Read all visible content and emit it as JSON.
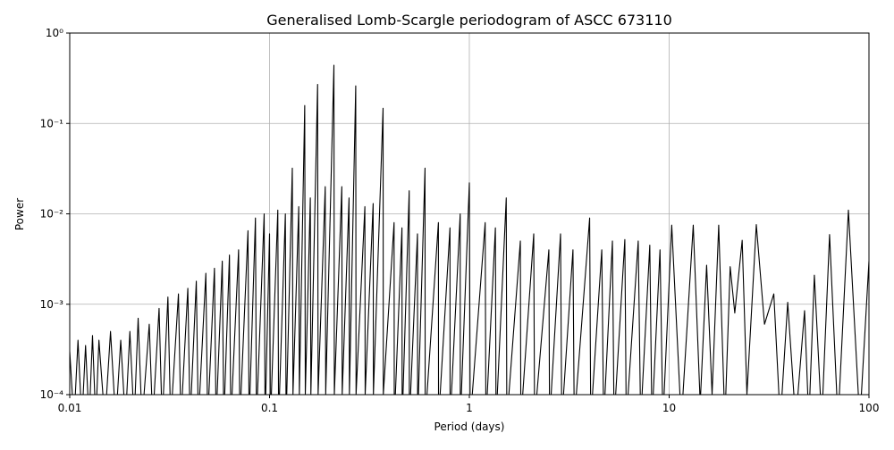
{
  "chart_data": {
    "type": "line",
    "title": "Generalised Lomb-Scargle periodogram of ASCC 673110",
    "x_label": "Period (days)",
    "y_label": "Power",
    "log_x": true,
    "log_y": true,
    "grid": true,
    "xlim": [
      0.01,
      100
    ],
    "ylim": [
      0.0001,
      1
    ],
    "xticks": [
      0.01,
      0.1,
      1,
      10,
      100
    ],
    "yticks": [
      {
        "value": 0.0001,
        "label": "10⁻⁴"
      },
      {
        "value": 0.001,
        "label": "10⁻³"
      },
      {
        "value": 0.01,
        "label": "10⁻²"
      },
      {
        "value": 0.1,
        "label": "10⁻¹"
      },
      {
        "value": 1,
        "label": "10⁰"
      }
    ],
    "x": [
      0.01,
      0.0105,
      0.011,
      0.0115,
      0.012,
      0.0125,
      0.013,
      0.0135,
      0.014,
      0.015,
      0.016,
      0.017,
      0.018,
      0.019,
      0.02,
      0.021,
      0.022,
      0.023,
      0.025,
      0.026,
      0.028,
      0.029,
      0.031,
      0.032,
      0.035,
      0.036,
      0.039,
      0.04,
      0.043,
      0.044,
      0.048,
      0.049,
      0.053,
      0.054,
      0.058,
      0.059,
      0.063,
      0.064,
      0.07,
      0.071,
      0.078,
      0.079,
      0.085,
      0.086,
      0.094,
      0.095,
      0.1,
      0.101,
      0.11,
      0.111,
      0.12,
      0.121,
      0.13,
      0.131,
      0.14,
      0.141,
      0.15,
      0.151,
      0.16,
      0.161,
      0.174,
      0.175,
      0.19,
      0.191,
      0.21,
      0.211,
      0.23,
      0.231,
      0.25,
      0.251,
      0.27,
      0.271,
      0.3,
      0.301,
      0.33,
      0.331,
      0.37,
      0.371,
      0.42,
      0.421,
      0.46,
      0.461,
      0.5,
      0.501,
      0.55,
      0.551,
      0.6,
      0.601,
      0.7,
      0.701,
      0.8,
      0.801,
      0.9,
      0.901,
      1.0,
      1.01,
      1.2,
      1.21,
      1.35,
      1.36,
      1.53,
      1.54,
      1.8,
      1.81,
      2.1,
      2.12,
      2.5,
      2.52,
      2.86,
      2.9,
      3.3,
      3.35,
      4.0,
      4.05,
      4.6,
      4.7,
      5.2,
      5.3,
      6.0,
      6.1,
      7.0,
      7.2,
      8.0,
      8.2,
      9.0,
      9.3,
      10.3,
      11.5,
      13.2,
      14.3,
      15.4,
      16.4,
      17.7,
      19,
      20.2,
      21.3,
      23.2,
      24.5,
      27.3,
      30,
      33.4,
      36,
      39.2,
      43,
      47.6,
      50,
      53.3,
      58,
      63.5,
      70,
      78.9,
      90,
      100
    ],
    "series": [
      {
        "name": "Power",
        "color": "#000000",
        "values": [
          0.0003,
          5e-05,
          0.0004,
          5e-05,
          0.00035,
          5e-05,
          0.00045,
          5e-05,
          0.0004,
          5e-05,
          0.0005,
          5e-05,
          0.0004,
          5e-05,
          0.0005,
          5e-05,
          0.0007,
          5e-05,
          0.0006,
          5e-05,
          0.0009,
          5e-05,
          0.0012,
          5e-05,
          0.0013,
          5e-05,
          0.0015,
          5e-05,
          0.0018,
          5e-05,
          0.0022,
          5e-05,
          0.0025,
          5e-05,
          0.003,
          5e-05,
          0.0035,
          5e-05,
          0.004,
          5e-05,
          0.0065,
          5e-05,
          0.009,
          5e-05,
          0.01,
          5e-05,
          0.006,
          5e-05,
          0.011,
          5e-05,
          0.01,
          5e-05,
          0.032,
          0.0001,
          0.012,
          0.0001,
          0.158,
          0.0001,
          0.015,
          0.0001,
          0.27,
          0.0001,
          0.02,
          0.0001,
          0.44,
          0.0001,
          0.02,
          0.0001,
          0.015,
          0.0001,
          0.26,
          0.0001,
          0.012,
          0.0001,
          0.013,
          0.0001,
          0.147,
          0.0001,
          0.008,
          5e-05,
          0.007,
          5e-05,
          0.018,
          5e-05,
          0.006,
          5e-05,
          0.032,
          5e-05,
          0.008,
          5e-05,
          0.007,
          5e-05,
          0.01,
          5e-05,
          0.022,
          5e-05,
          0.008,
          5e-05,
          0.007,
          5e-05,
          0.015,
          5e-05,
          0.005,
          5e-05,
          0.006,
          5e-05,
          0.004,
          5e-05,
          0.006,
          5e-05,
          0.004,
          5e-05,
          0.009,
          5e-05,
          0.004,
          5e-05,
          0.005,
          5e-05,
          0.0052,
          5e-05,
          0.005,
          5e-05,
          0.0045,
          5e-05,
          0.004,
          5e-05,
          0.0075,
          5e-05,
          0.0075,
          8e-05,
          0.0027,
          0.0001,
          0.0075,
          5e-05,
          0.0026,
          0.0008,
          0.0051,
          0.0001,
          0.0076,
          0.0006,
          0.0013,
          5e-05,
          0.00105,
          5e-05,
          0.00085,
          5e-05,
          0.0021,
          5e-05,
          0.0059,
          5e-05,
          0.011,
          5e-05,
          0.003
        ]
      }
    ]
  }
}
